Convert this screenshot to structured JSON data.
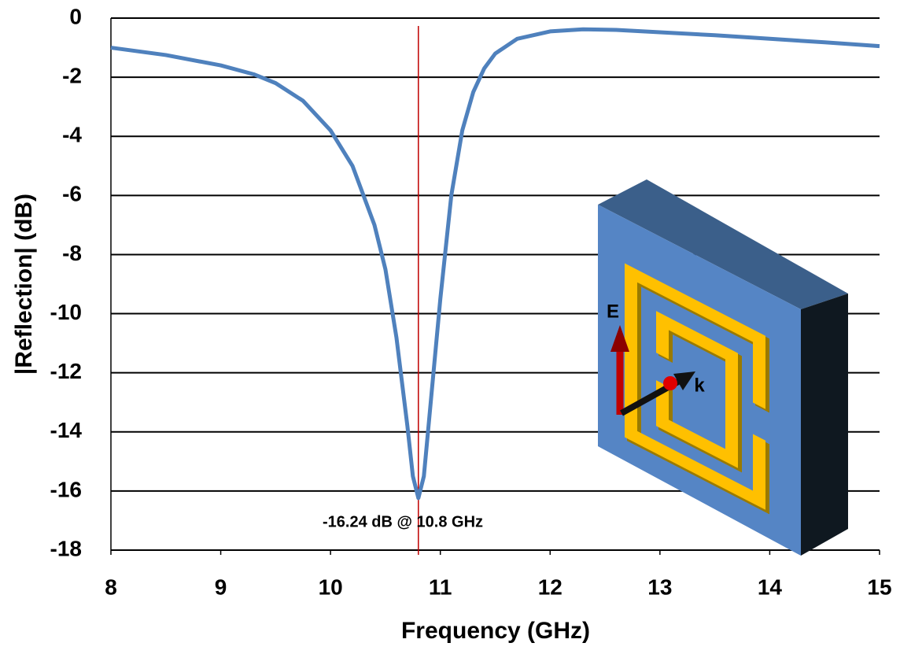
{
  "chart_data": {
    "type": "line",
    "y_label": "|Reflection| (dB)",
    "x_label": "Frequency (GHz)",
    "x": [
      8,
      8.5,
      9,
      9.3,
      9.5,
      9.75,
      10,
      10.2,
      10.4,
      10.5,
      10.6,
      10.7,
      10.75,
      10.8,
      10.85,
      10.9,
      11.0,
      11.1,
      11.2,
      11.3,
      11.4,
      11.5,
      11.7,
      12.0,
      12.3,
      12.6,
      13,
      13.5,
      14,
      14.5,
      15
    ],
    "series": [
      {
        "color": "#4f81bd",
        "values": [
          -1.0,
          -1.25,
          -1.6,
          -1.9,
          -2.2,
          -2.8,
          -3.8,
          -5.0,
          -7.0,
          -8.5,
          -10.8,
          -13.8,
          -15.5,
          -16.24,
          -15.5,
          -13.5,
          -9.5,
          -6.0,
          -3.8,
          -2.5,
          -1.7,
          -1.2,
          -0.7,
          -0.45,
          -0.38,
          -0.4,
          -0.48,
          -0.58,
          -0.7,
          -0.82,
          -0.95
        ]
      }
    ],
    "xlim": [
      8,
      15
    ],
    "ylim": [
      -18,
      0
    ],
    "xticks": [
      8,
      9,
      10,
      11,
      12,
      13,
      14,
      15
    ],
    "yticks": [
      0,
      -2,
      -4,
      -6,
      -8,
      -10,
      -12,
      -14,
      -16,
      -18
    ],
    "grid": true,
    "marker": {
      "x": 10.8,
      "color": "#c00000"
    },
    "annotation": "-16.24 dB @ 10.8 GHz",
    "inset_labels": [
      "E",
      "k"
    ]
  }
}
